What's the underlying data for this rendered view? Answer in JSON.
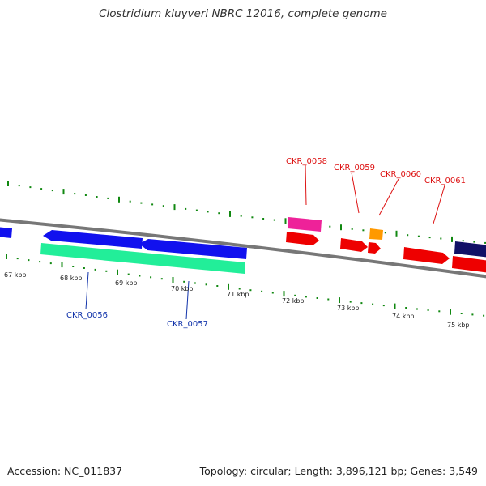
{
  "title": "Clostridium kluyveri NBRC 12016, complete genome",
  "footer": {
    "accession": "Accession: NC_011837",
    "summary": "Topology: circular; Length: 3,896,121 bp; Genes: 3,549"
  },
  "colors": {
    "tick": "#118811",
    "backbone": "#777777",
    "label_forward": "#dd1111",
    "label_reverse": "#1133aa",
    "gene_red": "#ee0000",
    "gene_blue": "#1111ee",
    "gene_navy": "#111166",
    "gene_pink": "#ee2299",
    "gene_green": "#22ee99",
    "gene_orange": "#ff9900"
  },
  "scale_labels": [
    "67 kbp",
    "68 kbp",
    "69 kbp",
    "70 kbp",
    "71 kbp",
    "72 kbp",
    "73 kbp",
    "74 kbp",
    "75 kbp"
  ],
  "gene_labels": {
    "forward": [
      "CKR_0058",
      "CKR_0059",
      "CKR_0060",
      "CKR_0061"
    ],
    "reverse": [
      "CKR_0056",
      "CKR_0057"
    ]
  }
}
